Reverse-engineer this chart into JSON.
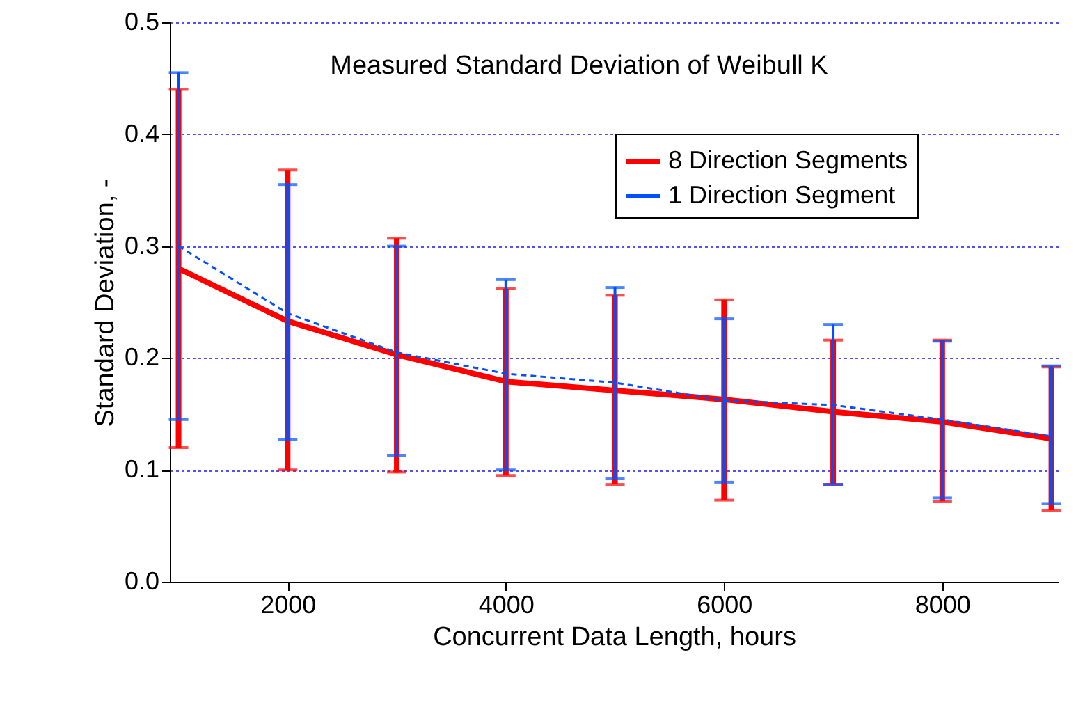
{
  "chart_data": {
    "type": "line",
    "title": "Measured Standard Deviation of Weibull K",
    "xlabel": "Concurrent Data Length, hours",
    "ylabel": "Standard Deviation, -",
    "x": [
      1000,
      2000,
      3000,
      4000,
      5000,
      6000,
      7000,
      8000,
      9000
    ],
    "series": [
      {
        "name": "8 Direction Segments",
        "color": "#ff0000",
        "line_style": "solid",
        "values": [
          0.28,
          0.233,
          0.203,
          0.179,
          0.171,
          0.163,
          0.152,
          0.143,
          0.128
        ],
        "errors": [
          [
            0.12,
            0.44
          ],
          [
            0.1,
            0.368
          ],
          [
            0.098,
            0.307
          ],
          [
            0.095,
            0.262
          ],
          [
            0.087,
            0.256
          ],
          [
            0.073,
            0.252
          ],
          [
            0.087,
            0.216
          ],
          [
            0.072,
            0.216
          ],
          [
            0.064,
            0.192
          ]
        ]
      },
      {
        "name": "1 Direction Segment",
        "color": "#0050ff",
        "line_style": "dashed",
        "values": [
          0.3,
          0.24,
          0.205,
          0.186,
          0.178,
          0.162,
          0.158,
          0.145,
          0.13
        ],
        "errors": [
          [
            0.145,
            0.455
          ],
          [
            0.127,
            0.355
          ],
          [
            0.113,
            0.3
          ],
          [
            0.1,
            0.27
          ],
          [
            0.092,
            0.263
          ],
          [
            0.089,
            0.235
          ],
          [
            0.087,
            0.23
          ],
          [
            0.075,
            0.215
          ],
          [
            0.07,
            0.193
          ]
        ]
      }
    ],
    "xlim": [
      920,
      9060
    ],
    "xticks": [
      2000,
      4000,
      6000,
      8000
    ],
    "ylim": [
      0,
      0.5
    ],
    "yticks": [
      {
        "value": 0,
        "label": "0.0"
      },
      0.1,
      0.2,
      0.3,
      0.4,
      0.5
    ],
    "grid": "y",
    "legend": "top right",
    "marker": "none"
  }
}
